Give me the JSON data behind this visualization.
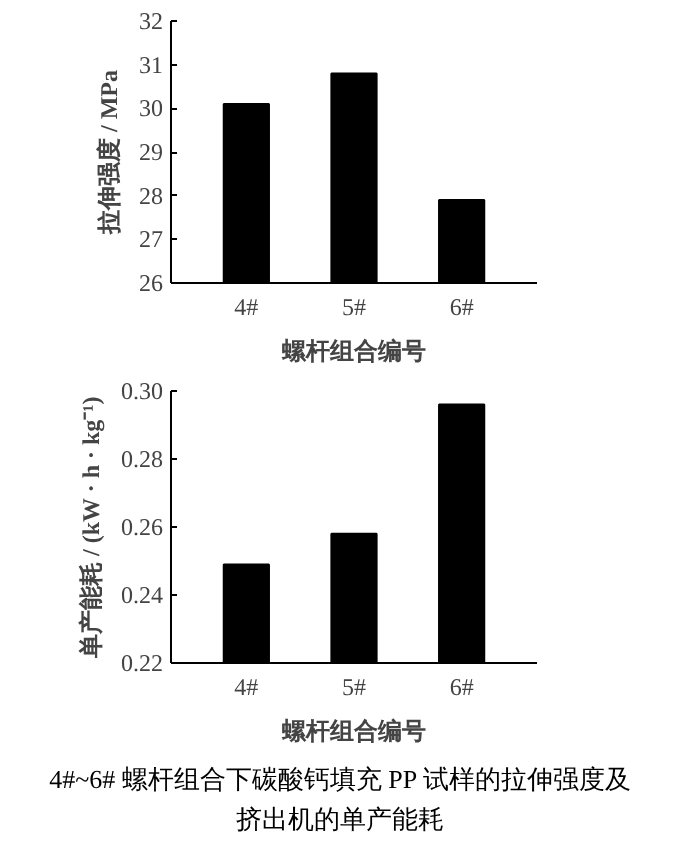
{
  "chart_data": [
    {
      "type": "bar",
      "categories": [
        "4#",
        "5#",
        "6#"
      ],
      "values": [
        30.1,
        30.8,
        27.9
      ],
      "color": "#000000",
      "xlabel": "螺杆组合编号",
      "ylabel": "拉伸强度 / MPa",
      "ylim": [
        26,
        32
      ],
      "yticks": [
        26,
        27,
        28,
        29,
        30,
        31,
        32
      ],
      "grid": false
    },
    {
      "type": "bar",
      "categories": [
        "4#",
        "5#",
        "6#"
      ],
      "values": [
        0.249,
        0.258,
        0.296
      ],
      "color": "#000000",
      "xlabel": "螺杆组合编号",
      "ylabel": "单产能耗 / (kW · h · kg⁻¹)",
      "ylim": [
        0.22,
        0.3
      ],
      "yticks": [
        0.22,
        0.24,
        0.26,
        0.28,
        {
          "value": 0.3,
          "label": "0.30"
        }
      ],
      "grid": false,
      "annotations": [
        "4#~6# 螺杆组合下碳酸钙填充 PP 试样的拉伸强度及挤出机的单产能耗"
      ]
    }
  ]
}
